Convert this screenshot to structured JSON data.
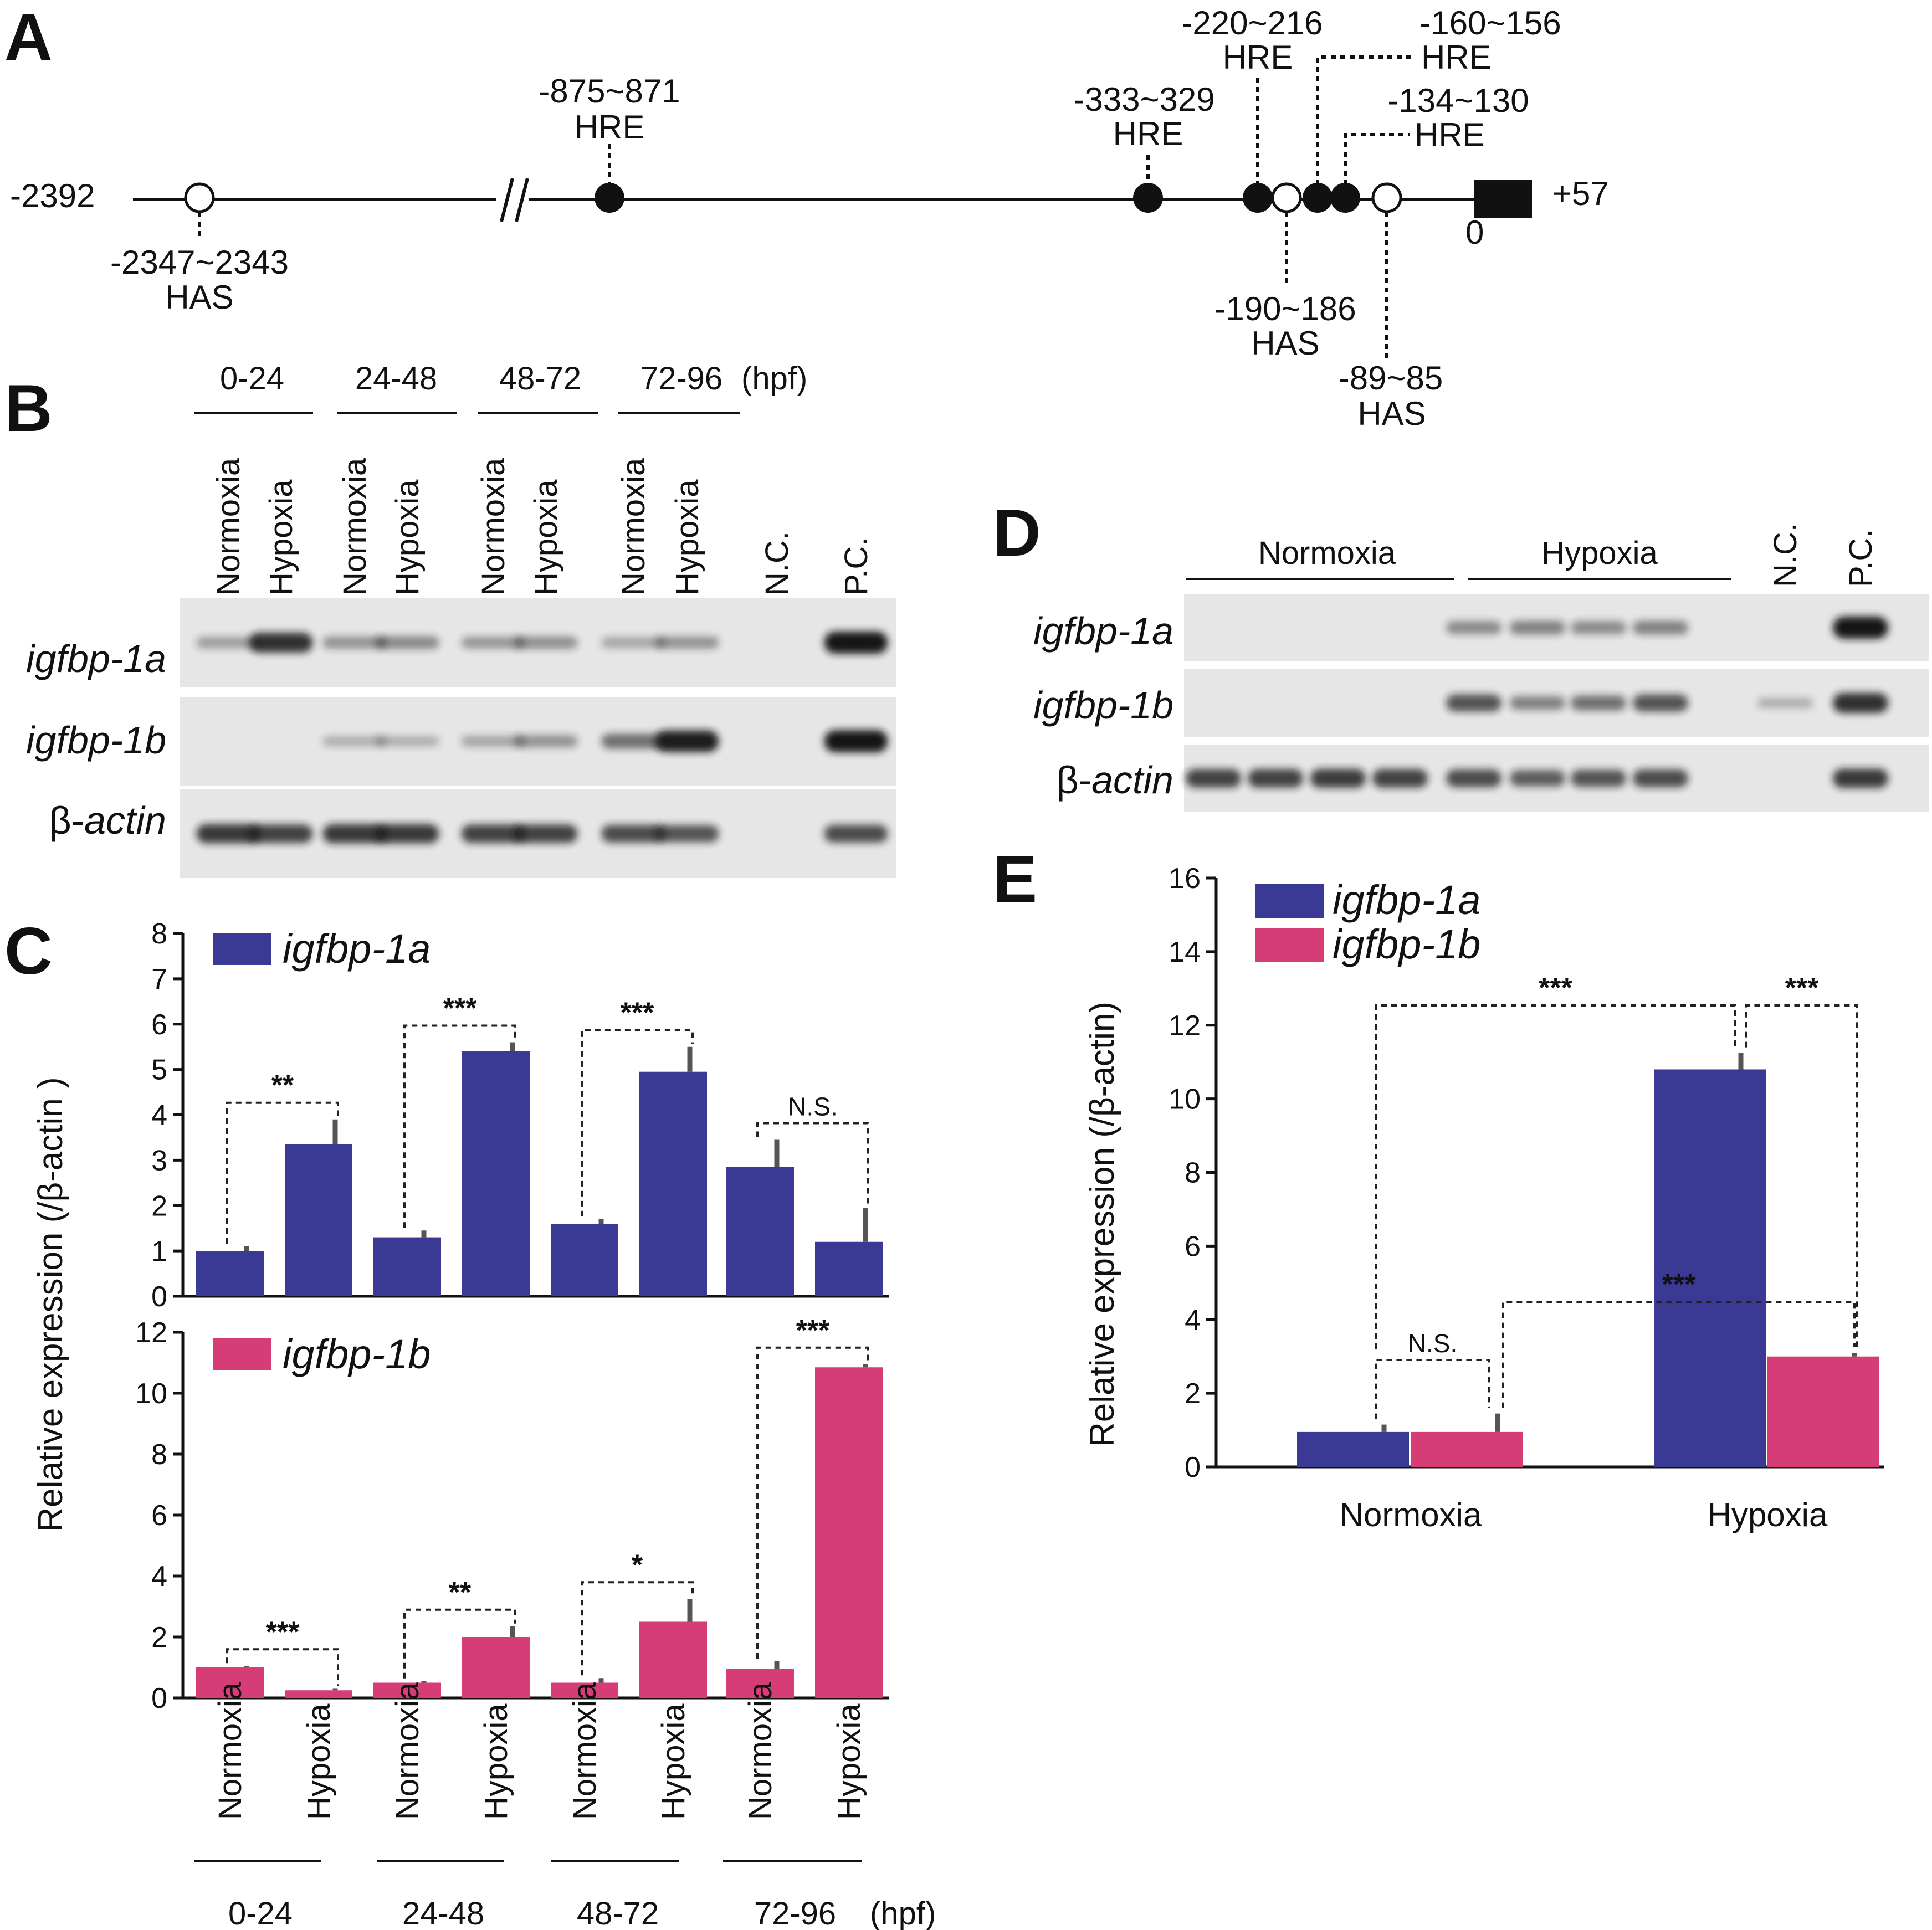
{
  "colors": {
    "igfbp1a": "#3a3a94",
    "igfbp1b": "#d63d76",
    "gel_bg": "#e6e6e6",
    "band": "#151515"
  },
  "panel_A": {
    "label": "A",
    "start": "-2392",
    "end": "+57",
    "zero": "0",
    "elements": [
      {
        "pos": "-2347~2343",
        "type": "HAS"
      },
      {
        "pos": "-875~871",
        "type": "HRE"
      },
      {
        "pos": "-333~329",
        "type": "HRE"
      },
      {
        "pos": "-220~216",
        "type": "HRE"
      },
      {
        "pos": "-190~186",
        "type": "HAS"
      },
      {
        "pos": "-160~156",
        "type": "HRE"
      },
      {
        "pos": "-134~130",
        "type": "HRE"
      },
      {
        "pos": "-89~85",
        "type": "HAS"
      }
    ]
  },
  "panel_B": {
    "label": "B",
    "groups": [
      "0-24",
      "24-48",
      "48-72",
      "72-96"
    ],
    "unit": "(hpf)",
    "lanes": [
      "Normoxia",
      "Hypoxia",
      "Normoxia",
      "Hypoxia",
      "Normoxia",
      "Hypoxia",
      "Normoxia",
      "Hypoxia",
      "N.C.",
      "P.C."
    ],
    "rows": [
      {
        "gene": "igfbp-1a",
        "intensity": [
          0.25,
          0.85,
          0.3,
          0.35,
          0.28,
          0.32,
          0.2,
          0.3,
          0.0,
          1.0
        ]
      },
      {
        "gene": "igfbp-1b",
        "intensity": [
          0.0,
          0.0,
          0.15,
          0.15,
          0.2,
          0.3,
          0.5,
          0.95,
          0.0,
          1.0
        ]
      },
      {
        "gene_prefix": "β-",
        "gene": "actin",
        "intensity": [
          0.8,
          0.75,
          0.8,
          0.8,
          0.75,
          0.75,
          0.7,
          0.65,
          0.0,
          0.7
        ]
      }
    ]
  },
  "panel_C": {
    "label": "C",
    "ylabel": "Relative expression (/β-actin )",
    "xlabel_unit": "(hpf)"
  },
  "panel_D": {
    "label": "D",
    "groups": [
      "Normoxia",
      "Hypoxia"
    ],
    "extra_lanes": [
      "N.C.",
      "P.C."
    ],
    "rows": [
      {
        "gene": "igfbp-1a",
        "intensity": [
          0.0,
          0.0,
          0.0,
          0.0,
          0.35,
          0.4,
          0.35,
          0.4,
          0.0,
          1.0
        ]
      },
      {
        "gene": "igfbp-1b",
        "intensity": [
          0.0,
          0.0,
          0.0,
          0.0,
          0.65,
          0.4,
          0.5,
          0.65,
          0.15,
          0.85
        ]
      },
      {
        "gene_prefix": "β-",
        "gene": "actin",
        "intensity": [
          0.75,
          0.75,
          0.78,
          0.75,
          0.7,
          0.6,
          0.65,
          0.7,
          0.0,
          0.8
        ]
      }
    ]
  },
  "panel_E": {
    "label": "E",
    "ylabel": "Relative expression (/β-actin)"
  },
  "chart_data": [
    {
      "type": "bar",
      "panel": "C-top",
      "legend": "igfbp-1a",
      "groups": [
        "0-24",
        "24-48",
        "48-72",
        "72-96"
      ],
      "categories": [
        "Normoxia",
        "Hypoxia",
        "Normoxia",
        "Hypoxia",
        "Normoxia",
        "Hypoxia",
        "Normoxia",
        "Hypoxia"
      ],
      "values": [
        1.0,
        3.35,
        1.3,
        5.4,
        1.6,
        4.95,
        2.85,
        1.2
      ],
      "errors": [
        0.1,
        0.55,
        0.15,
        0.2,
        0.1,
        0.55,
        0.6,
        0.75
      ],
      "significance": [
        "**",
        "***",
        "***",
        "N.S."
      ],
      "ylim": [
        0,
        8
      ],
      "yticks": [
        0,
        1,
        2,
        3,
        4,
        5,
        6,
        7,
        8
      ]
    },
    {
      "type": "bar",
      "panel": "C-bottom",
      "legend": "igfbp-1b",
      "groups": [
        "0-24",
        "24-48",
        "48-72",
        "72-96"
      ],
      "categories": [
        "Normoxia",
        "Hypoxia",
        "Normoxia",
        "Hypoxia",
        "Normoxia",
        "Hypoxia",
        "Normoxia",
        "Hypoxia"
      ],
      "values": [
        1.0,
        0.25,
        0.5,
        2.0,
        0.5,
        2.5,
        0.95,
        10.85
      ],
      "errors": [
        0.05,
        0.05,
        0.05,
        0.35,
        0.15,
        0.75,
        0.25,
        0.1
      ],
      "significance": [
        "***",
        "**",
        "*",
        "***"
      ],
      "ylim": [
        0,
        12
      ],
      "yticks": [
        0,
        2,
        4,
        6,
        8,
        10,
        12
      ]
    },
    {
      "type": "bar",
      "panel": "E",
      "categories": [
        "Normoxia",
        "Hypoxia"
      ],
      "series": [
        {
          "name": "igfbp-1a",
          "values": [
            0.95,
            10.8
          ],
          "errors": [
            0.2,
            0.45
          ]
        },
        {
          "name": "igfbp-1b",
          "values": [
            0.95,
            3.0
          ],
          "errors": [
            0.5,
            0.1
          ]
        }
      ],
      "significance": {
        "normoxia_1a_vs_1b": "N.S.",
        "1a_normoxia_vs_hypoxia": "***",
        "hypoxia_1a_vs_1b": "***",
        "1b_normoxia_vs_hypoxia": "***"
      },
      "ylim": [
        0,
        16
      ],
      "yticks": [
        0,
        2,
        4,
        6,
        8,
        10,
        12,
        14,
        16
      ]
    }
  ]
}
